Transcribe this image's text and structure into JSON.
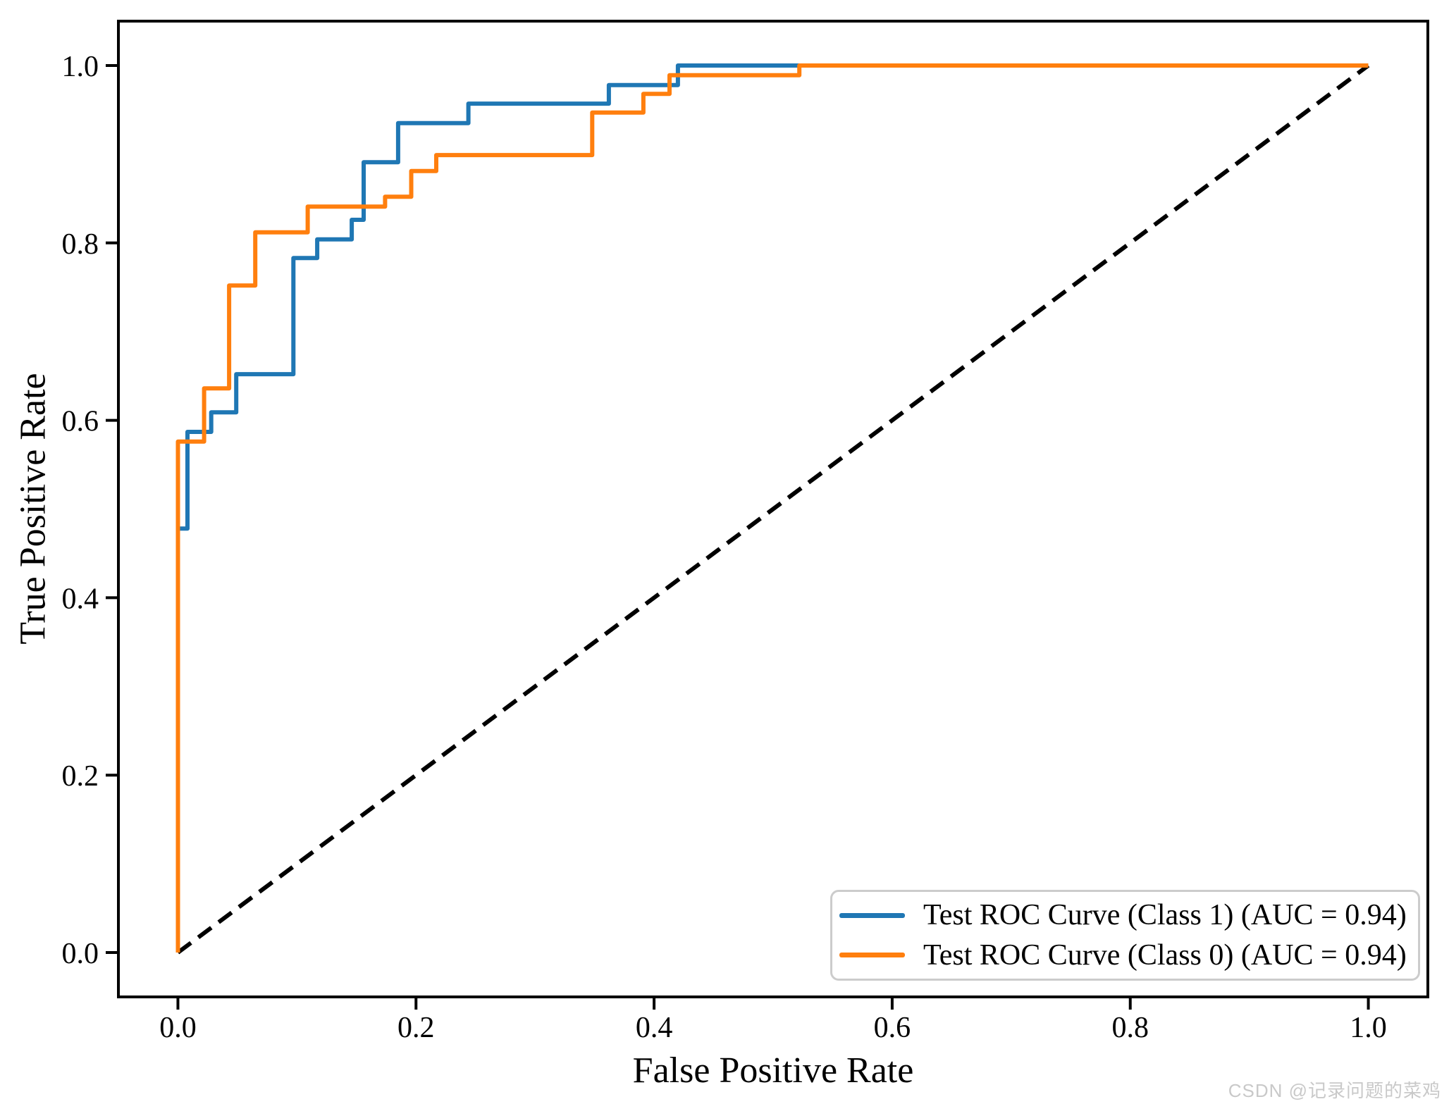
{
  "figure": {
    "xlabel": "False Positive Rate",
    "ylabel": "True Positive Rate",
    "watermark": "CSDN @记录问题的菜鸡",
    "background": "#ffffff"
  },
  "legend": {
    "position": "lower right",
    "items": [
      {
        "label": "Test ROC Curve (Class 1) (AUC = 0.94)",
        "color": "#1f77b4"
      },
      {
        "label": "Test ROC Curve (Class 0) (AUC = 0.94)",
        "color": "#ff7f0e"
      }
    ]
  },
  "chart_data": {
    "type": "line",
    "subtype": "roc-step-curves",
    "title": "",
    "xlabel": "False Positive Rate",
    "ylabel": "True Positive Rate",
    "xlim": [
      -0.05,
      1.05
    ],
    "ylim": [
      -0.05,
      1.05
    ],
    "grid": false,
    "legend_position": "lower right",
    "x_ticks": [
      0.0,
      0.2,
      0.4,
      0.6,
      0.8,
      1.0
    ],
    "y_ticks": [
      0.0,
      0.2,
      0.4,
      0.6,
      0.8,
      1.0
    ],
    "x_tick_labels": [
      "0.0",
      "0.2",
      "0.4",
      "0.6",
      "0.8",
      "1.0"
    ],
    "y_tick_labels": [
      "0.0",
      "0.2",
      "0.4",
      "0.6",
      "0.8",
      "1.0"
    ],
    "series": [
      {
        "id": "class1",
        "name": "Test ROC Curve (Class 1) (AUC = 0.94)",
        "auc": 0.94,
        "color": "#1f77b4",
        "style": "solid",
        "points": [
          [
            0.0,
            0.0
          ],
          [
            0.0,
            0.478
          ],
          [
            0.008,
            0.478
          ],
          [
            0.008,
            0.587
          ],
          [
            0.028,
            0.587
          ],
          [
            0.028,
            0.609
          ],
          [
            0.049,
            0.609
          ],
          [
            0.049,
            0.652
          ],
          [
            0.097,
            0.652
          ],
          [
            0.097,
            0.783
          ],
          [
            0.117,
            0.783
          ],
          [
            0.117,
            0.804
          ],
          [
            0.146,
            0.804
          ],
          [
            0.146,
            0.826
          ],
          [
            0.156,
            0.826
          ],
          [
            0.156,
            0.891
          ],
          [
            0.185,
            0.891
          ],
          [
            0.185,
            0.935
          ],
          [
            0.244,
            0.935
          ],
          [
            0.244,
            0.957
          ],
          [
            0.362,
            0.957
          ],
          [
            0.362,
            0.978
          ],
          [
            0.42,
            0.978
          ],
          [
            0.42,
            1.0
          ],
          [
            1.0,
            1.0
          ]
        ]
      },
      {
        "id": "class0",
        "name": "Test ROC Curve (Class 0) (AUC = 0.94)",
        "auc": 0.94,
        "color": "#ff7f0e",
        "style": "solid",
        "points": [
          [
            0.0,
            0.0
          ],
          [
            0.0,
            0.576
          ],
          [
            0.022,
            0.576
          ],
          [
            0.022,
            0.636
          ],
          [
            0.043,
            0.636
          ],
          [
            0.043,
            0.752
          ],
          [
            0.065,
            0.752
          ],
          [
            0.065,
            0.812
          ],
          [
            0.109,
            0.812
          ],
          [
            0.109,
            0.841
          ],
          [
            0.174,
            0.841
          ],
          [
            0.174,
            0.852
          ],
          [
            0.196,
            0.852
          ],
          [
            0.196,
            0.881
          ],
          [
            0.217,
            0.881
          ],
          [
            0.217,
            0.899
          ],
          [
            0.348,
            0.899
          ],
          [
            0.348,
            0.947
          ],
          [
            0.391,
            0.947
          ],
          [
            0.391,
            0.968
          ],
          [
            0.413,
            0.968
          ],
          [
            0.413,
            0.989
          ],
          [
            0.522,
            0.989
          ],
          [
            0.522,
            1.0
          ],
          [
            1.0,
            1.0
          ]
        ]
      },
      {
        "id": "diagonal",
        "name": "chance-diagonal",
        "color": "#000000",
        "style": "dashed",
        "points": [
          [
            0.0,
            0.0
          ],
          [
            1.0,
            1.0
          ]
        ]
      }
    ]
  }
}
